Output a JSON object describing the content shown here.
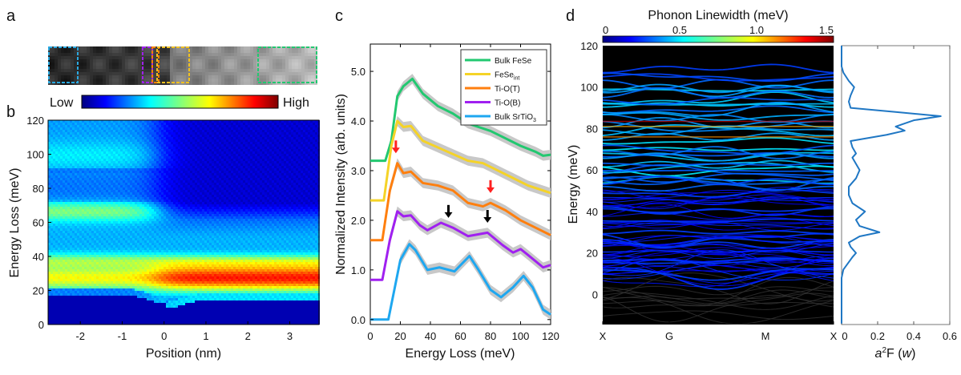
{
  "panels": {
    "a": "a",
    "b": "b",
    "c": "c",
    "d": "d"
  },
  "chart_data": [
    {
      "panel": "a",
      "type": "image",
      "box_colors": [
        "#2aa8e0",
        "#a020f0",
        "#ff8000",
        "#f0c020",
        "#22c870"
      ]
    },
    {
      "panel": "b",
      "type": "heatmap",
      "xlabel": "Position (nm)",
      "ylabel": "Energy Loss (meV)",
      "xlim": [
        -2.77,
        3.7
      ],
      "ylim": [
        0,
        120
      ],
      "xticks": [
        "-2",
        "-1",
        "0",
        "1",
        "2",
        "3"
      ],
      "xtick_values": [
        -2,
        -1,
        0,
        1,
        2,
        3
      ],
      "yticks": [
        "0",
        "20",
        "40",
        "60",
        "80",
        "100",
        "120"
      ],
      "ytick_values": [
        0,
        20,
        40,
        60,
        80,
        100,
        120
      ],
      "colorbar": {
        "low_label": "Low",
        "high_label": "High",
        "colormap": "jet"
      }
    },
    {
      "panel": "c",
      "type": "line",
      "xlabel": "Energy Loss (meV)",
      "ylabel": "Normalized Intensity (arb. units)",
      "xlim": [
        0,
        120
      ],
      "ylim": [
        -0.1,
        5.55
      ],
      "xticks": [
        "0",
        "20",
        "40",
        "60",
        "80",
        "100",
        "120"
      ],
      "xtick_values": [
        0,
        20,
        40,
        60,
        80,
        100,
        120
      ],
      "yticks": [
        "0.0",
        "1.0",
        "2.0",
        "3.0",
        "4.0",
        "5.0"
      ],
      "ytick_values": [
        0,
        1,
        2,
        3,
        4,
        5
      ],
      "legend": "top-right",
      "series": [
        {
          "name": "Bulk FeSe",
          "sub": "",
          "color": "#22c870",
          "points": [
            [
              0,
              3.2
            ],
            [
              10,
              3.2
            ],
            [
              14,
              3.6
            ],
            [
              18,
              4.5
            ],
            [
              22,
              4.7
            ],
            [
              28,
              4.85
            ],
            [
              35,
              4.55
            ],
            [
              45,
              4.3
            ],
            [
              55,
              4.15
            ],
            [
              65,
              3.95
            ],
            [
              80,
              3.8
            ],
            [
              90,
              3.65
            ],
            [
              100,
              3.5
            ],
            [
              110,
              3.38
            ],
            [
              115,
              3.3
            ],
            [
              120,
              3.32
            ]
          ]
        },
        {
          "name": "FeSe",
          "sub": "int",
          "color": "#f5d327",
          "points": [
            [
              0,
              2.4
            ],
            [
              9,
              2.4
            ],
            [
              14,
              3.5
            ],
            [
              18,
              4.0
            ],
            [
              22,
              3.88
            ],
            [
              27,
              3.9
            ],
            [
              35,
              3.6
            ],
            [
              50,
              3.4
            ],
            [
              65,
              3.2
            ],
            [
              75,
              3.15
            ],
            [
              85,
              3.0
            ],
            [
              95,
              2.85
            ],
            [
              105,
              2.7
            ],
            [
              120,
              2.55
            ]
          ]
        },
        {
          "name": "Ti-O(T)",
          "sub": "",
          "color": "#ff7f0e",
          "points": [
            [
              0,
              1.6
            ],
            [
              8,
              1.6
            ],
            [
              13,
              2.6
            ],
            [
              18,
              3.15
            ],
            [
              22,
              2.95
            ],
            [
              27,
              2.98
            ],
            [
              35,
              2.75
            ],
            [
              45,
              2.7
            ],
            [
              55,
              2.6
            ],
            [
              65,
              2.35
            ],
            [
              75,
              2.28
            ],
            [
              80,
              2.35
            ],
            [
              90,
              2.2
            ],
            [
              100,
              2.0
            ],
            [
              110,
              1.85
            ],
            [
              120,
              1.7
            ]
          ]
        },
        {
          "name": "Ti-O(B)",
          "sub": "",
          "color": "#a020f0",
          "points": [
            [
              0,
              0.8
            ],
            [
              8,
              0.8
            ],
            [
              13,
              1.6
            ],
            [
              18,
              2.18
            ],
            [
              22,
              2.08
            ],
            [
              27,
              2.1
            ],
            [
              33,
              1.9
            ],
            [
              38,
              1.8
            ],
            [
              47,
              1.95
            ],
            [
              55,
              1.85
            ],
            [
              65,
              1.68
            ],
            [
              78,
              1.75
            ],
            [
              88,
              1.5
            ],
            [
              95,
              1.35
            ],
            [
              100,
              1.42
            ],
            [
              105,
              1.3
            ],
            [
              115,
              1.05
            ],
            [
              120,
              1.1
            ]
          ]
        },
        {
          "name": "Bulk SrTiO",
          "sub": "3",
          "color": "#1ea7f0",
          "points": [
            [
              0,
              0
            ],
            [
              12,
              0
            ],
            [
              16,
              0.6
            ],
            [
              20,
              1.2
            ],
            [
              26,
              1.52
            ],
            [
              30,
              1.4
            ],
            [
              38,
              1.0
            ],
            [
              46,
              1.05
            ],
            [
              56,
              0.97
            ],
            [
              66,
              1.28
            ],
            [
              72,
              1.0
            ],
            [
              80,
              0.6
            ],
            [
              87,
              0.45
            ],
            [
              95,
              0.65
            ],
            [
              102,
              0.88
            ],
            [
              108,
              0.65
            ],
            [
              115,
              0.2
            ],
            [
              120,
              0.1
            ]
          ]
        }
      ],
      "arrows": [
        {
          "x": 17,
          "y": 3.35,
          "color": "#ff2020"
        },
        {
          "x": 80,
          "y": 2.55,
          "color": "#ff2020"
        },
        {
          "x": 52,
          "y": 2.05,
          "color": "#000000"
        },
        {
          "x": 78,
          "y": 1.95,
          "color": "#000000"
        }
      ]
    },
    {
      "panel": "d",
      "type": "line",
      "title": "Phonon Linewidth (meV)",
      "ylabel": "Energy (meV)",
      "ylim": [
        -14.5,
        120
      ],
      "xticks": [
        "X",
        "G",
        "M",
        "X"
      ],
      "yticks": [
        "0",
        "20",
        "40",
        "60",
        "80",
        "100",
        "120"
      ],
      "ytick_values": [
        0,
        20,
        40,
        60,
        80,
        100,
        120
      ],
      "colorbar": {
        "ticks": [
          "0",
          "0.5",
          "1.0",
          "1.5"
        ],
        "tick_values": [
          0,
          0.5,
          1.0,
          1.5
        ],
        "colormap": "jet"
      }
    },
    {
      "panel": "d-right",
      "type": "line",
      "xlabel_main": "a",
      "xlabel_sup": "2",
      "xlabel_rest": "F (",
      "xlabel_var": "w",
      "xlabel_end": ")",
      "xlim": [
        0,
        0.6
      ],
      "xticks": [
        "0",
        "0.2",
        "0.4",
        "0.6"
      ],
      "xtick_values": [
        0,
        0.2,
        0.4,
        0.6
      ],
      "color": "#1f77c4",
      "points": [
        [
          -14,
          0
        ],
        [
          8,
          0
        ],
        [
          12,
          0.01
        ],
        [
          18,
          0.06
        ],
        [
          20,
          0.08
        ],
        [
          23,
          0.05
        ],
        [
          25,
          0.04
        ],
        [
          28,
          0.1
        ],
        [
          30,
          0.21
        ],
        [
          33,
          0.1
        ],
        [
          36,
          0.08
        ],
        [
          40,
          0.13
        ],
        [
          44,
          0.06
        ],
        [
          48,
          0.04
        ],
        [
          52,
          0.04
        ],
        [
          56,
          0.08
        ],
        [
          60,
          0.1
        ],
        [
          63,
          0.08
        ],
        [
          66,
          0.06
        ],
        [
          68,
          0.08
        ],
        [
          71,
          0.06
        ],
        [
          74,
          0.05
        ],
        [
          77,
          0.25
        ],
        [
          79,
          0.35
        ],
        [
          81,
          0.3
        ],
        [
          84,
          0.4
        ],
        [
          86,
          0.55
        ],
        [
          88,
          0.3
        ],
        [
          90,
          0.05
        ],
        [
          93,
          0.04
        ],
        [
          96,
          0.05
        ],
        [
          100,
          0.07
        ],
        [
          103,
          0.04
        ],
        [
          107,
          0.01
        ],
        [
          110,
          0
        ],
        [
          120,
          0
        ]
      ]
    }
  ]
}
